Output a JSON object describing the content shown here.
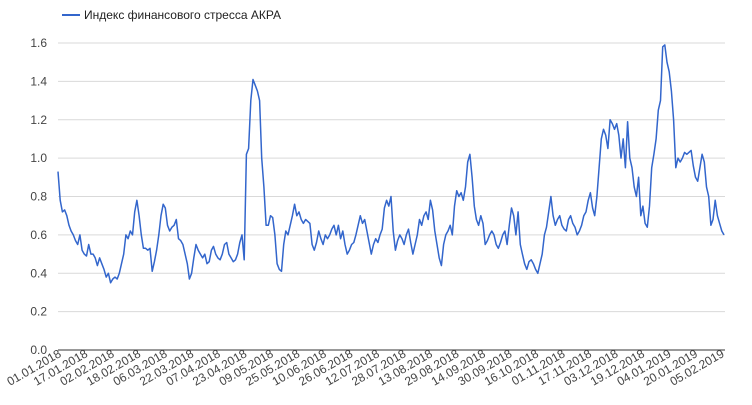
{
  "chart_data": {
    "type": "line",
    "title": "",
    "xlabel": "",
    "ylabel": "",
    "legend_position": "top-left",
    "grid": true,
    "colors": {
      "series": "#3366cc",
      "grid": "#d9d9d9",
      "text": "#444444"
    },
    "ylim": [
      0,
      1.6
    ],
    "yticks": [
      "0.0",
      "0.2",
      "0.4",
      "0.6",
      "0.8",
      "1.0",
      "1.2",
      "1.4",
      "1.6"
    ],
    "yticks_values": [
      0,
      0.2,
      0.4,
      0.6,
      0.8,
      1.0,
      1.2,
      1.4,
      1.6
    ],
    "xticks": [
      "01.01.2018",
      "17.01.2018",
      "02.02.2018",
      "18.02.2018",
      "06.03.2018",
      "22.03.2018",
      "07.04.2018",
      "23.04.2018",
      "09.05.2018",
      "25.05.2018",
      "10.06.2018",
      "26.06.2018",
      "12.07.2018",
      "28.07.2018",
      "13.08.2018",
      "29.08.2018",
      "14.09.2018",
      "30.09.2018",
      "16.10.2018",
      "01.11.2018",
      "17.11.2018",
      "03.12.2018",
      "19.12.2018",
      "04.01.2019",
      "20.01.2019",
      "05.02.2019"
    ],
    "series": [
      {
        "name": "Индекс финансового стресса АКРА",
        "x_start": "01.01.2018",
        "x_end": "08.02.2019",
        "values": [
          0.93,
          0.78,
          0.72,
          0.73,
          0.7,
          0.65,
          0.62,
          0.6,
          0.57,
          0.55,
          0.6,
          0.52,
          0.5,
          0.49,
          0.55,
          0.5,
          0.5,
          0.48,
          0.44,
          0.48,
          0.45,
          0.42,
          0.38,
          0.4,
          0.35,
          0.37,
          0.38,
          0.37,
          0.4,
          0.45,
          0.5,
          0.6,
          0.58,
          0.62,
          0.6,
          0.72,
          0.78,
          0.7,
          0.6,
          0.53,
          0.53,
          0.52,
          0.53,
          0.41,
          0.46,
          0.52,
          0.6,
          0.7,
          0.76,
          0.74,
          0.65,
          0.62,
          0.64,
          0.65,
          0.68,
          0.58,
          0.57,
          0.55,
          0.5,
          0.45,
          0.37,
          0.4,
          0.48,
          0.55,
          0.52,
          0.5,
          0.48,
          0.5,
          0.45,
          0.46,
          0.52,
          0.54,
          0.5,
          0.48,
          0.47,
          0.5,
          0.55,
          0.56,
          0.5,
          0.48,
          0.46,
          0.47,
          0.5,
          0.56,
          0.6,
          0.47,
          1.02,
          1.05,
          1.3,
          1.41,
          1.38,
          1.35,
          1.3,
          1.0,
          0.85,
          0.65,
          0.65,
          0.7,
          0.69,
          0.6,
          0.45,
          0.42,
          0.41,
          0.55,
          0.62,
          0.6,
          0.65,
          0.7,
          0.76,
          0.7,
          0.72,
          0.68,
          0.66,
          0.68,
          0.67,
          0.66,
          0.55,
          0.52,
          0.56,
          0.62,
          0.58,
          0.55,
          0.6,
          0.58,
          0.6,
          0.63,
          0.65,
          0.6,
          0.65,
          0.58,
          0.62,
          0.55,
          0.5,
          0.52,
          0.55,
          0.56,
          0.6,
          0.65,
          0.7,
          0.66,
          0.68,
          0.62,
          0.56,
          0.5,
          0.55,
          0.58,
          0.56,
          0.6,
          0.63,
          0.74,
          0.78,
          0.75,
          0.8,
          0.62,
          0.52,
          0.57,
          0.6,
          0.58,
          0.55,
          0.6,
          0.63,
          0.56,
          0.5,
          0.55,
          0.6,
          0.68,
          0.65,
          0.7,
          0.72,
          0.68,
          0.78,
          0.73,
          0.62,
          0.55,
          0.48,
          0.44,
          0.55,
          0.6,
          0.62,
          0.65,
          0.6,
          0.75,
          0.83,
          0.8,
          0.82,
          0.78,
          0.85,
          0.98,
          1.02,
          0.9,
          0.75,
          0.68,
          0.65,
          0.7,
          0.66,
          0.55,
          0.57,
          0.6,
          0.62,
          0.6,
          0.55,
          0.53,
          0.56,
          0.6,
          0.62,
          0.55,
          0.65,
          0.74,
          0.7,
          0.6,
          0.72,
          0.55,
          0.5,
          0.45,
          0.42,
          0.46,
          0.47,
          0.45,
          0.42,
          0.4,
          0.45,
          0.5,
          0.6,
          0.64,
          0.72,
          0.8,
          0.7,
          0.65,
          0.68,
          0.7,
          0.65,
          0.63,
          0.62,
          0.68,
          0.7,
          0.66,
          0.64,
          0.6,
          0.62,
          0.65,
          0.7,
          0.72,
          0.78,
          0.82,
          0.74,
          0.7,
          0.8,
          0.95,
          1.1,
          1.15,
          1.12,
          1.05,
          1.2,
          1.18,
          1.15,
          1.18,
          1.12,
          1.0,
          1.1,
          0.95,
          1.19,
          1.0,
          0.95,
          0.85,
          0.8,
          0.9,
          0.7,
          0.75,
          0.66,
          0.64,
          0.75,
          0.95,
          1.02,
          1.1,
          1.25,
          1.3,
          1.58,
          1.59,
          1.5,
          1.45,
          1.35,
          1.2,
          0.95,
          1.0,
          0.98,
          1.0,
          1.03,
          1.02,
          1.03,
          1.04,
          0.96,
          0.9,
          0.88,
          0.95,
          1.02,
          0.98,
          0.85,
          0.8,
          0.65,
          0.68,
          0.78,
          0.7,
          0.66,
          0.62,
          0.6
        ]
      }
    ]
  }
}
